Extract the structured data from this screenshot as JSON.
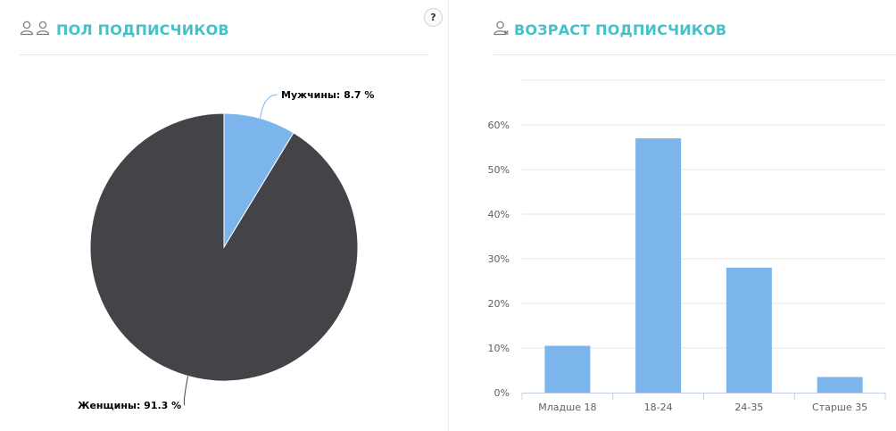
{
  "gender_panel": {
    "title": "ПОЛ ПОДПИСЧИКОВ",
    "icon": "two-users-icon",
    "help_label": "?"
  },
  "age_panel": {
    "title": "ВОЗРАСТ ПОДПИСЧИКОВ",
    "icon": "user-x-icon"
  },
  "colors": {
    "accent": "#46c1c9",
    "male": "#7cb5ec",
    "female": "#434348",
    "bar": "#7cb5ec"
  },
  "chart_data": [
    {
      "type": "pie",
      "title": "ПОЛ ПОДПИСЧИКОВ",
      "series": [
        {
          "name": "Мужчины",
          "value": 8.7,
          "label": "Мужчины: 8.7 %"
        },
        {
          "name": "Женщины",
          "value": 91.3,
          "label": "Женщины: 91.3 %"
        }
      ]
    },
    {
      "type": "bar",
      "title": "ВОЗРАСТ ПОДПИСЧИКОВ",
      "categories": [
        "Младше 18",
        "18-24",
        "24-35",
        "Старше 35"
      ],
      "values": [
        10.5,
        57.0,
        28.0,
        3.5
      ],
      "ylim": [
        0,
        60
      ],
      "yticks": [
        "0%",
        "10%",
        "20%",
        "30%",
        "40%",
        "50%",
        "60%"
      ],
      "grid": true
    }
  ]
}
